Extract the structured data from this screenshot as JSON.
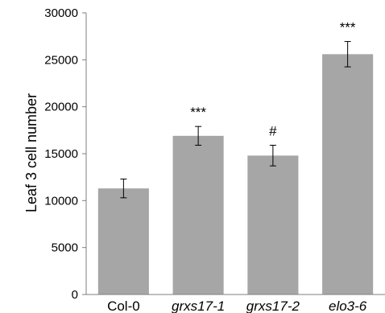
{
  "chart_data": {
    "type": "bar",
    "title": "",
    "xlabel": "",
    "ylabel": "Leaf 3 cell number",
    "ylim": [
      0,
      30000
    ],
    "yticks": [
      0,
      5000,
      10000,
      15000,
      20000,
      25000,
      30000
    ],
    "grid": false,
    "categories": [
      "Col-0",
      "grxs17-1",
      "grxs17-2",
      "elo3-6"
    ],
    "category_italic": [
      false,
      true,
      true,
      true
    ],
    "values": [
      11300,
      16900,
      14800,
      25600
    ],
    "errors": [
      1000,
      1000,
      1100,
      1350
    ],
    "annotations": [
      "",
      "***",
      "#",
      "***"
    ],
    "bar_color": "#a6a6a6",
    "axis_color": "#7f7f7f"
  }
}
